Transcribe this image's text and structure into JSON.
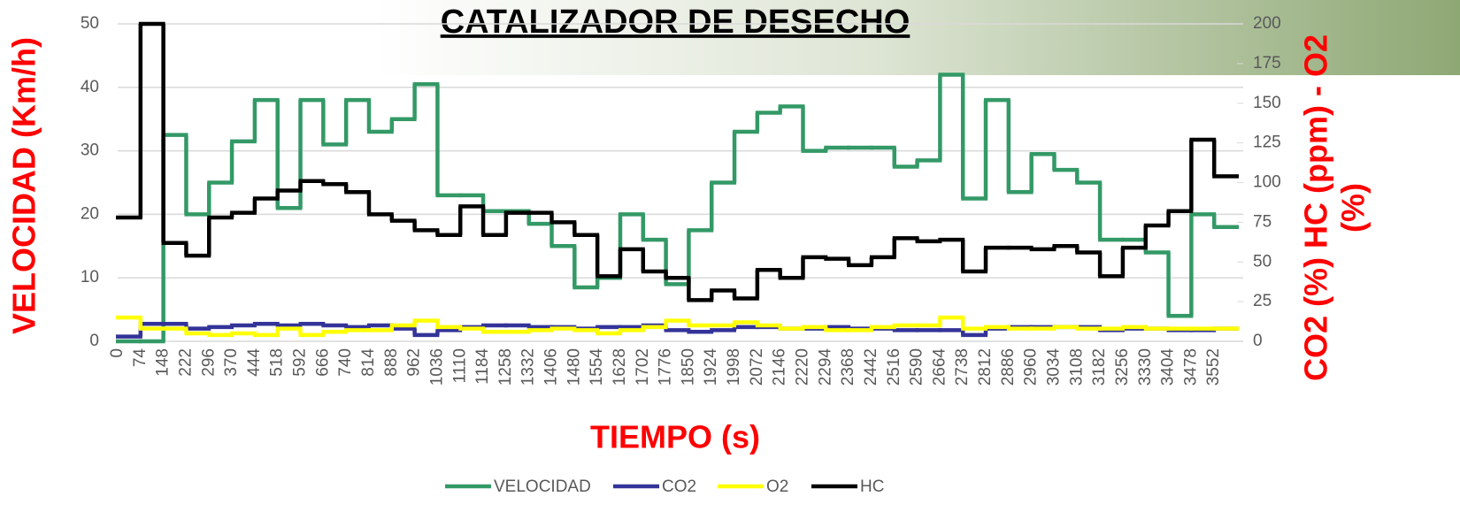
{
  "chart_data": {
    "type": "step",
    "title": "CATALIZADOR DE DESECHO",
    "x_label": "TIEMPO (s)",
    "y_label": "VELOCIDAD (Km/h)",
    "y2_label": [
      "CO2 (%) HC (ppm) - O2",
      "(%)"
    ],
    "categories": [
      "0",
      "74",
      "148",
      "222",
      "296",
      "370",
      "444",
      "518",
      "592",
      "666",
      "740",
      "814",
      "888",
      "962",
      "1036",
      "1110",
      "1184",
      "1258",
      "1332",
      "1406",
      "1480",
      "1554",
      "1628",
      "1702",
      "1776",
      "1850",
      "1924",
      "1998",
      "2072",
      "2146",
      "2220",
      "2294",
      "2368",
      "2442",
      "2516",
      "2590",
      "2664",
      "2738",
      "2812",
      "2886",
      "2960",
      "3034",
      "3108",
      "3182",
      "3256",
      "3330",
      "3404",
      "3478",
      "3552"
    ],
    "ylim": [
      0,
      50
    ],
    "yticks": [
      0,
      10,
      20,
      30,
      40,
      50
    ],
    "y2lim": [
      0,
      200
    ],
    "y2ticks": [
      0,
      25,
      50,
      75,
      100,
      125,
      150,
      175,
      200
    ],
    "grid": true,
    "legend": "bottom",
    "series": [
      {
        "name": "VELOCIDAD",
        "color": "#339966",
        "values": [
          0,
          0,
          32.5,
          20,
          25,
          31.5,
          38,
          21,
          38,
          31,
          38,
          33,
          35,
          40.5,
          23,
          23,
          20.5,
          20.5,
          18.5,
          15,
          8.5,
          10,
          20,
          16,
          9,
          17.5,
          25,
          33,
          36,
          37,
          30,
          30.5,
          30.5,
          30.5,
          27.5,
          28.5,
          42,
          22.5,
          38,
          23.5,
          29.5,
          27,
          25,
          16,
          16,
          14,
          4,
          20,
          18
        ]
      },
      {
        "name": "CO2",
        "color": "#333399",
        "axis": "y2",
        "values": [
          3,
          11,
          11,
          8,
          9,
          10,
          11,
          10,
          11,
          10,
          9,
          10,
          8,
          4,
          7,
          9,
          10,
          10,
          9,
          9,
          8,
          9,
          9,
          10,
          7,
          6,
          7,
          9,
          9,
          8,
          8,
          9,
          8,
          8,
          7,
          7,
          7,
          4,
          8,
          9,
          9,
          9,
          9,
          7,
          8,
          8,
          7,
          7,
          8
        ]
      },
      {
        "name": "O2",
        "color": "#ffff00",
        "axis": "y2",
        "values": [
          15,
          8,
          8,
          5,
          4,
          5,
          4,
          8,
          4,
          6,
          7,
          7,
          10,
          13,
          9,
          8,
          6,
          6,
          7,
          8,
          7,
          5,
          7,
          9,
          13,
          10,
          10,
          12,
          10,
          8,
          9,
          7,
          7,
          9,
          10,
          10,
          15,
          8,
          9,
          8,
          8,
          9,
          8,
          8,
          9,
          8,
          8,
          8,
          8
        ]
      },
      {
        "name": "HC",
        "color": "#000000",
        "axis": "y2",
        "values": [
          78,
          200,
          62,
          54,
          78,
          81,
          90,
          95,
          101,
          99,
          94,
          80,
          76,
          70,
          67,
          85,
          67,
          81,
          81,
          75,
          67,
          41,
          58,
          44,
          40,
          26,
          32,
          27,
          45,
          40,
          53,
          52,
          48,
          53,
          65,
          63,
          64,
          44,
          59,
          59,
          58,
          60,
          56,
          41,
          59,
          73,
          82,
          127,
          104
        ]
      }
    ]
  }
}
